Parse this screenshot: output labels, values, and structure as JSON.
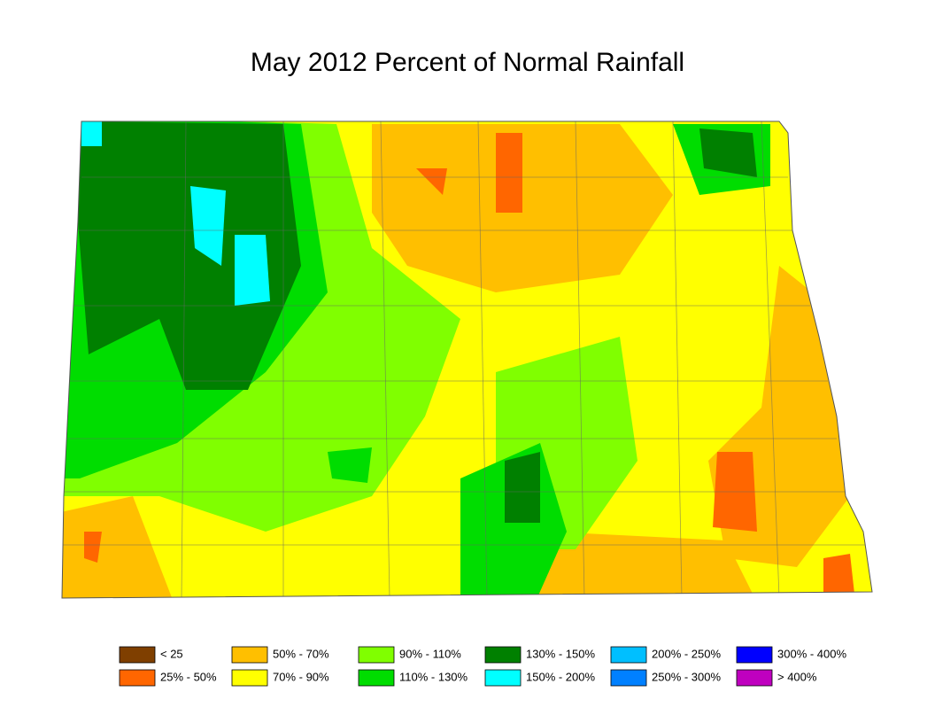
{
  "title": "May 2012 Percent of Normal Rainfall",
  "legend": {
    "items": [
      {
        "label": "< 25",
        "color": "#7f3f00"
      },
      {
        "label": "25% - 50%",
        "color": "#ff6600"
      },
      {
        "label": "50% - 70%",
        "color": "#ffbf00"
      },
      {
        "label": "70% - 90%",
        "color": "#ffff00"
      },
      {
        "label": "90% - 110%",
        "color": "#80ff00"
      },
      {
        "label": "110% - 130%",
        "color": "#00dd00"
      },
      {
        "label": "130% - 150%",
        "color": "#008000"
      },
      {
        "label": "150% - 200%",
        "color": "#00ffff"
      },
      {
        "label": "200% - 250%",
        "color": "#00bfff"
      },
      {
        "label": "250% - 300%",
        "color": "#0080ff"
      },
      {
        "label": "300% - 400%",
        "color": "#0000ff"
      },
      {
        "label": "> 400%",
        "color": "#bf00bf"
      }
    ]
  }
}
